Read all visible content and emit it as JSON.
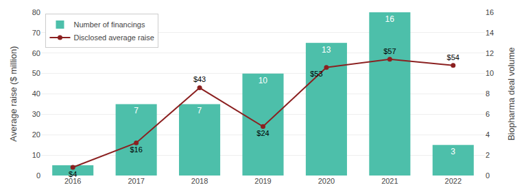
{
  "chart_data": {
    "type": "bar",
    "categories": [
      "2016",
      "2017",
      "2018",
      "2019",
      "2020",
      "2021",
      "2022"
    ],
    "series": [
      {
        "name": "Number of financings",
        "type": "bar",
        "color": "#4DBFAA",
        "axis": "y2",
        "values": [
          1,
          7,
          7,
          10,
          13,
          16,
          3
        ],
        "value_labels": [
          null,
          "7",
          "7",
          "10",
          "13",
          "16",
          "3"
        ]
      },
      {
        "name": "Disclosed average raise",
        "type": "line",
        "color": "#8B2020",
        "marker": "circle",
        "values": [
          4,
          16,
          43,
          24,
          53,
          57,
          54
        ],
        "value_labels": [
          "$4",
          "$16",
          "$43",
          "$24",
          "$53",
          "$57",
          "$54"
        ]
      }
    ],
    "ylabel": "Average raise ($ million)",
    "y2label": "Biopharma deal volume",
    "ylim": [
      0,
      80
    ],
    "yticks": [
      0,
      10,
      20,
      30,
      40,
      50,
      60,
      70,
      80
    ],
    "y2lim": [
      0,
      16
    ],
    "y2ticks": [
      0,
      2,
      4,
      6,
      8,
      10,
      12,
      14,
      16
    ],
    "grid": true,
    "legend": "upper left",
    "data_labels": true
  }
}
